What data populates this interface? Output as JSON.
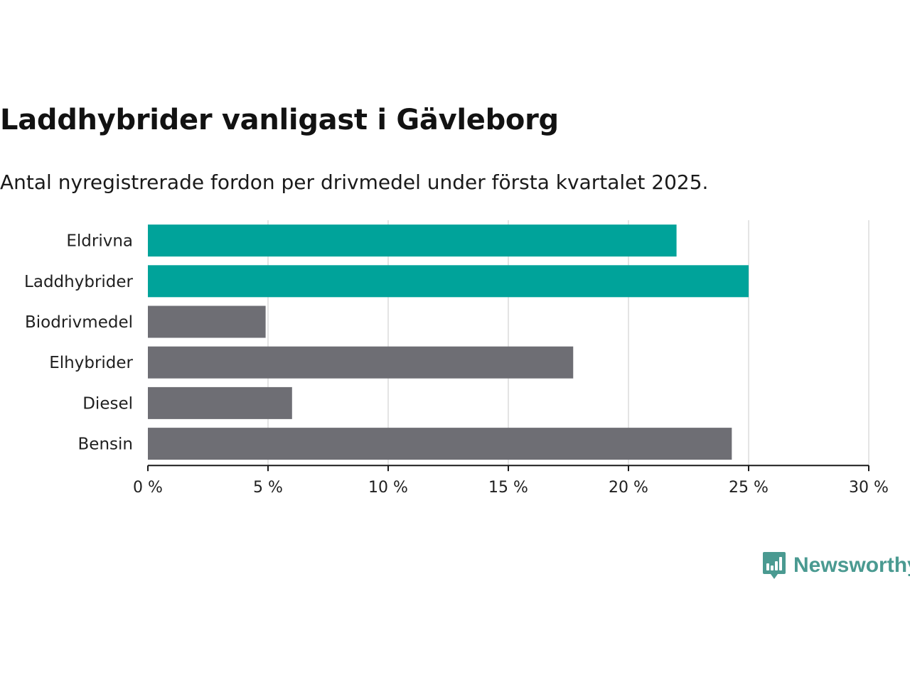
{
  "header": {
    "title": "Laddhybrider vanligast i Gävleborg",
    "subtitle": "Antal nyregistrerade fordon per drivmedel under första kvartalet 2025."
  },
  "brand": {
    "name": "Newsworthy",
    "icon": "bar-chart-speech-bubble-icon",
    "color": "#4a9a91"
  },
  "chart_data": {
    "type": "bar",
    "orientation": "horizontal",
    "categories": [
      "Eldrivna",
      "Laddhybrider",
      "Biodrivmedel",
      "Elhybrider",
      "Diesel",
      "Bensin"
    ],
    "values": [
      22.0,
      25.0,
      4.9,
      17.7,
      6.0,
      24.3
    ],
    "unit": "%",
    "colors": [
      "#00a39a",
      "#00a39a",
      "#6e6e74",
      "#6e6e74",
      "#6e6e74",
      "#6e6e74"
    ],
    "xlim": [
      0,
      30
    ],
    "xticks": [
      0,
      5,
      10,
      15,
      20,
      25,
      30
    ],
    "xtick_labels": [
      "0 %",
      "5 %",
      "10 %",
      "15 %",
      "20 %",
      "25 %",
      "30 %"
    ],
    "grid": true,
    "legend": "none"
  }
}
